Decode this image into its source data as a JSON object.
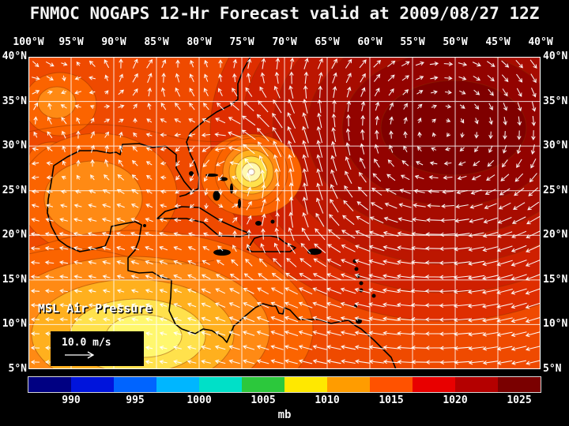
{
  "title": "FNMOC NOGAPS 12-Hr Forecast valid at 2009/08/27 12Z",
  "map": {
    "label": "MSL Air Pressure",
    "wind_scale_label": "10.0 m/s",
    "lon_labels": [
      "100°W",
      "95°W",
      "90°W",
      "85°W",
      "80°W",
      "75°W",
      "70°W",
      "65°W",
      "60°W",
      "55°W",
      "50°W",
      "45°W",
      "40°W"
    ],
    "lat_labels": [
      "40°N",
      "35°N",
      "30°N",
      "25°N",
      "20°N",
      "15°N",
      "10°N",
      "5°N"
    ],
    "grid_interval_deg": 5
  },
  "colorbar": {
    "unit": "mb",
    "tick_labels": [
      "990",
      "995",
      "1000",
      "1005",
      "1010",
      "1015",
      "1020",
      "1025"
    ],
    "colors": [
      "#000082",
      "#0014dc",
      "#0064ff",
      "#00b6ff",
      "#00e0c8",
      "#2cc83c",
      "#ffe800",
      "#ff9c00",
      "#ff5200",
      "#e80000",
      "#b40000",
      "#7a0000"
    ]
  },
  "colors": {
    "background": "#000000",
    "text": "#ffffff",
    "grid": "#ffffff",
    "wind_vectors": "#ffffff",
    "coastlines": "#000000"
  },
  "chart_data": {
    "type": "heatmap",
    "title": "FNMOC NOGAPS 12-Hr Forecast valid at 2009/08/27 12Z",
    "source": "FNMOC",
    "model": "NOGAPS",
    "forecast_hours": 12,
    "valid_time": "2009/08/27 12Z",
    "field": "MSL Air Pressure",
    "unit": "mb",
    "overlay": "surface wind vectors",
    "wind_reference_mps": 10.0,
    "grid": true,
    "x_axis": {
      "label": "longitude",
      "ticks": [
        "100°W",
        "95°W",
        "90°W",
        "85°W",
        "80°W",
        "75°W",
        "70°W",
        "65°W",
        "60°W",
        "55°W",
        "50°W",
        "45°W",
        "40°W"
      ]
    },
    "y_axis": {
      "label": "latitude",
      "ticks": [
        "40°N",
        "35°N",
        "30°N",
        "25°N",
        "20°N",
        "15°N",
        "10°N",
        "5°N"
      ]
    },
    "colorbar": {
      "ticks": [
        990,
        995,
        1000,
        1005,
        1010,
        1015,
        1020,
        1025
      ],
      "unit": "mb",
      "position": "bottom"
    },
    "features": [
      {
        "name": "tropical cyclone (closed low with cyclonic wind circulation)",
        "approx_position": "27°N 74°W",
        "approx_central_pressure_mb": 1004
      },
      {
        "name": "Atlantic subtropical high (anticyclonic circulation, strong trade winds on south flank)",
        "approx_position": "31°N 53°W",
        "approx_central_pressure_mb": 1025
      },
      {
        "name": "Central America / SW Caribbean low",
        "approx_position": "11°N 88°W",
        "approx_central_pressure_mb": 1006
      },
      {
        "name": "Gulf of Mexico relative low",
        "approx_position": "24°N 92°W",
        "approx_pressure_mb": 1011
      }
    ]
  }
}
